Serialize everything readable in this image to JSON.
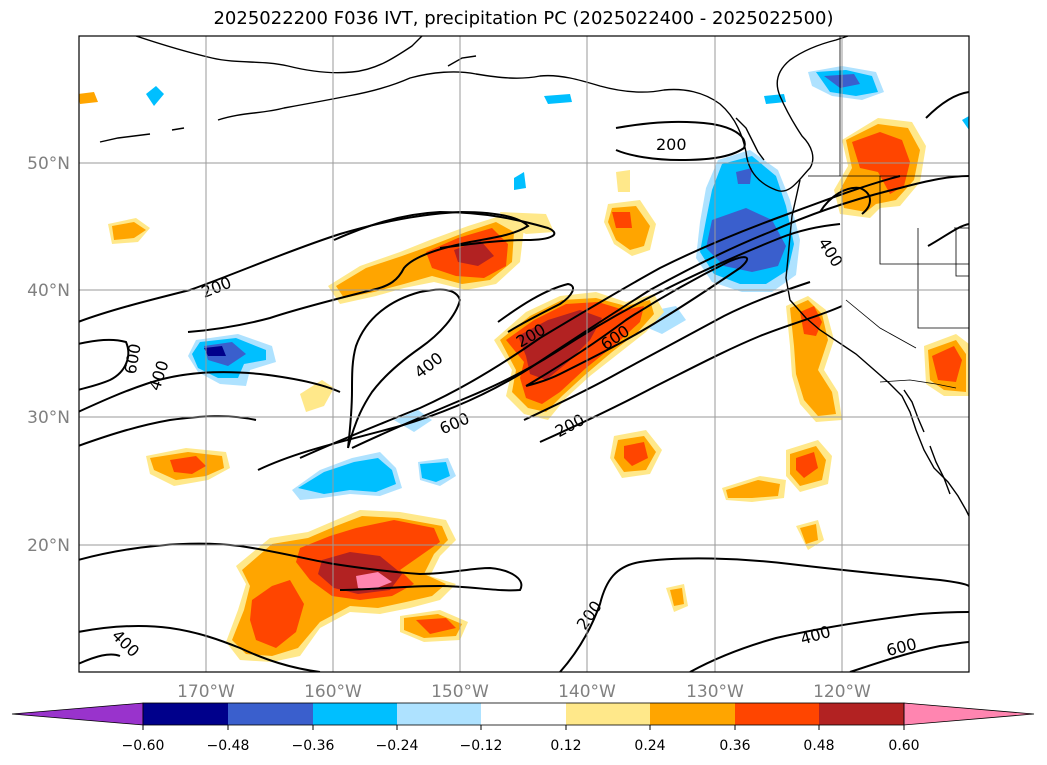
{
  "title": "2025022200 F036 IVT, precipitation PC (2025022400 - 2025022500)",
  "lon_labels": [
    "170°W",
    "160°W",
    "150°W",
    "140°W",
    "130°W",
    "120°W"
  ],
  "lat_labels": [
    "50°N",
    "40°N",
    "30°N",
    "20°N"
  ],
  "ivt_labels": [
    "200",
    "400",
    "600"
  ],
  "colorbar": {
    "ticks": [
      "−0.60",
      "−0.48",
      "−0.36",
      "−0.24",
      "−0.12",
      "0.12",
      "0.24",
      "0.36",
      "0.48",
      "0.60"
    ],
    "colors": {
      "c_lt060": "#9933cc",
      "c_048_060": "#00008b",
      "c_036_048": "#3a5fcd",
      "c_024_036": "#00bfff",
      "c_012_024": "#aee2ff",
      "c_neutral": "#ffffff",
      "c_012_024_pos": "#ffe88a",
      "c_024_036_pos": "#ffa500",
      "c_036_048_pos": "#ff4500",
      "c_048_060_pos": "#b22222",
      "c_gt060": "#ff85b0"
    }
  },
  "chart_data": {
    "type": "heatmap",
    "title": "2025022200 F036 IVT, precipitation PC (2025022400 - 2025022500)",
    "projection": "lat-lon",
    "lon_range": [
      -180,
      -110
    ],
    "lat_range": [
      10,
      60
    ],
    "x_ticks": [
      "170°W",
      "160°W",
      "150°W",
      "140°W",
      "130°W",
      "120°W"
    ],
    "y_ticks": [
      "50°N",
      "40°N",
      "30°N",
      "20°N"
    ],
    "contour_field": "IVT",
    "contour_levels": [
      200,
      400,
      600
    ],
    "fill_field": "precipitation PC",
    "fill_levels": [
      -0.6,
      -0.48,
      -0.36,
      -0.24,
      -0.12,
      0.12,
      0.24,
      0.36,
      0.48,
      0.6
    ],
    "grid": true,
    "colorbar_position": "bottom",
    "colorbar_extend": "both"
  }
}
